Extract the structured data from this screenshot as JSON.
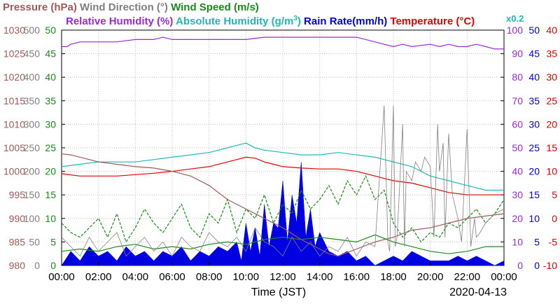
{
  "chart_data": {
    "type": "line",
    "date": "2020-04-13",
    "xlabel": "Time (JST)",
    "x_ticks": [
      "00:00",
      "02:00",
      "04:00",
      "06:00",
      "08:00",
      "10:00",
      "12:00",
      "14:00",
      "16:00",
      "18:00",
      "20:00",
      "22:00",
      "00:00"
    ],
    "x_hours": [
      0,
      24
    ],
    "legend_row1": [
      {
        "text": "Pressure (hPa)",
        "color": "#a05a5a"
      },
      {
        "text": "Wind Direction (°)",
        "color": "#808080"
      },
      {
        "text": "Wind Speed (m/s)",
        "color": "#1a8a1a"
      }
    ],
    "legend_row2": [
      {
        "text": "Relative Humidity (%)",
        "color": "#9a28e0"
      },
      {
        "text": "Absolute Humidity (g/m",
        "sup": "3",
        "tail": ")",
        "color": "#20b8b8"
      },
      {
        "text": "Rain Rate(mm/h)",
        "color": "#0000e0"
      },
      {
        "text": "Temperature (°C)",
        "color": "#e80000"
      }
    ],
    "abs_humidity_scale_note": "x0.2",
    "axes": {
      "pressure": {
        "labels": [
          "1030",
          "1025",
          "1020",
          "1015",
          "1010",
          "1005",
          "1000",
          "995",
          "990",
          "985",
          "980"
        ],
        "range": [
          980,
          1030
        ],
        "color": "#a05a5a"
      },
      "wind_direction": {
        "labels": [
          "500",
          "450",
          "400",
          "350",
          "300",
          "250",
          "200",
          "150",
          "100",
          "50",
          "0"
        ],
        "range": [
          0,
          500
        ],
        "color": "#808080"
      },
      "wind_speed": {
        "labels": [
          "50",
          "45",
          "40",
          "35",
          "30",
          "25",
          "20",
          "15",
          "10",
          "5",
          "0"
        ],
        "range": [
          0,
          50
        ],
        "color": "#1a8a1a"
      },
      "humidity": {
        "labels": [
          "100",
          "90",
          "80",
          "70",
          "60",
          "50",
          "40",
          "30",
          "20",
          "10",
          "0"
        ],
        "range": [
          0,
          100
        ],
        "color": "#9a28e0"
      },
      "rain_rate": {
        "labels": [
          "50",
          "45",
          "40",
          "35",
          "30",
          "25",
          "20",
          "15",
          "10",
          "5",
          "0"
        ],
        "range": [
          0,
          50
        ],
        "color": "#0000e0"
      },
      "temperature": {
        "labels": [
          "40",
          "35",
          "30",
          "25",
          "20",
          "15",
          "10",
          "5",
          "0",
          "-5",
          "-10"
        ],
        "range": [
          -10,
          40
        ],
        "color": "#e80000"
      }
    },
    "series": [
      {
        "name": "Relative Humidity",
        "axis": "humidity",
        "color": "#9a28e0",
        "x": [
          0,
          0.3,
          0.5,
          1,
          2,
          3,
          4,
          5,
          5.5,
          6,
          7,
          8,
          9,
          10,
          11,
          12,
          13,
          14,
          15,
          16,
          16.5,
          17,
          17.5,
          18,
          18.5,
          19,
          20,
          20.5,
          21,
          21.5,
          22,
          22.5,
          23,
          23.5,
          24
        ],
        "y": [
          93,
          93,
          94,
          95,
          95,
          95,
          96,
          96,
          97,
          96,
          96,
          96,
          96,
          96,
          97,
          97,
          97,
          97,
          97,
          97,
          96,
          95,
          94,
          93,
          94,
          93,
          94,
          93,
          94,
          93,
          93,
          94,
          93,
          92,
          92
        ]
      },
      {
        "name": "Absolute Humidity",
        "axis": "humidity",
        "color": "#20b8b8",
        "x": [
          0,
          1,
          2,
          3,
          4,
          5,
          6,
          7,
          8,
          8.5,
          9,
          9.5,
          10,
          10.5,
          11,
          12,
          13,
          14,
          15,
          16,
          17,
          17.5,
          18,
          19,
          20,
          20.5,
          21,
          22,
          23,
          24
        ],
        "y": [
          42,
          43,
          44,
          44,
          44,
          45,
          46,
          47,
          48,
          49,
          50,
          51,
          52,
          50,
          49,
          48,
          47,
          47,
          48,
          47,
          46,
          45,
          44,
          42,
          38,
          37,
          36,
          34,
          32,
          32
        ]
      },
      {
        "name": "Temperature",
        "axis": "temperature",
        "color": "#e80000",
        "x": [
          0,
          1,
          2,
          3,
          4,
          5,
          6,
          7,
          8,
          9,
          9.5,
          10,
          10.5,
          11,
          11.5,
          12,
          13,
          14,
          15,
          16,
          17,
          17.5,
          18,
          19,
          20,
          21,
          22,
          23,
          24
        ],
        "y": [
          9.5,
          9,
          9,
          9,
          9.3,
          9.6,
          10,
          10.5,
          11,
          12,
          12.5,
          13,
          12.8,
          12,
          11.5,
          11,
          10.7,
          10.5,
          10.5,
          10,
          9,
          8.5,
          8,
          7.5,
          6.5,
          5.5,
          5,
          5,
          5
        ]
      },
      {
        "name": "Pressure",
        "axis": "pressure",
        "color": "#a05a5a",
        "x": [
          0,
          0.5,
          1,
          2,
          3,
          4,
          5,
          6,
          7,
          8,
          9,
          10,
          11,
          12,
          13,
          14,
          14.5,
          15,
          16,
          17,
          17.5,
          18,
          19,
          20,
          21,
          22,
          23,
          24
        ],
        "y": [
          1003.7,
          1003.5,
          1003,
          1002,
          1001.5,
          1001,
          1000.7,
          1000,
          999,
          997,
          994,
          992,
          990,
          988,
          985.5,
          983.5,
          982.5,
          982,
          983.5,
          985,
          985.5,
          986,
          987.5,
          988,
          989,
          990,
          990.5,
          991
        ]
      },
      {
        "name": "Wind Speed (max)",
        "axis": "wind_speed",
        "color": "#1a8a1a",
        "dashed": true,
        "x": [
          0,
          0.5,
          1,
          1.5,
          2,
          2.5,
          3,
          3.5,
          4,
          4.5,
          5,
          5.5,
          6,
          6.5,
          7,
          7.5,
          8,
          8.5,
          9,
          9.5,
          10,
          10.5,
          11,
          11.5,
          12,
          12.5,
          13,
          13.5,
          14,
          14.5,
          15,
          15.5,
          16,
          16.5,
          17,
          17.5,
          18,
          18.5,
          19,
          19.5,
          20,
          20.5,
          21,
          21.5,
          22,
          22.5,
          23,
          23.5,
          24
        ],
        "y": [
          9,
          7,
          6,
          8,
          10,
          6,
          11,
          5,
          8,
          12,
          9,
          7,
          10,
          13,
          8,
          6,
          11,
          9,
          14,
          7,
          12,
          10,
          15,
          9,
          13,
          11,
          16,
          12,
          14,
          17,
          13,
          18,
          15,
          19,
          14,
          16,
          9,
          6,
          8,
          5,
          7,
          6,
          9,
          8,
          10,
          12,
          9,
          11,
          14
        ]
      },
      {
        "name": "Wind Speed (avg)",
        "axis": "wind_speed",
        "color": "#1a8a1a",
        "x": [
          0,
          1,
          2,
          3,
          4,
          5,
          6,
          7,
          8,
          9,
          10,
          11,
          12,
          13,
          14,
          15,
          16,
          17,
          18,
          19,
          20,
          21,
          22,
          23,
          24
        ],
        "y": [
          3,
          3.5,
          3,
          4,
          4.5,
          3.5,
          4,
          3.5,
          4.5,
          5,
          4.5,
          5.5,
          6,
          5.5,
          6,
          5.5,
          5,
          6.5,
          5,
          4,
          3,
          2.5,
          3,
          4,
          4
        ]
      },
      {
        "name": "Wind Direction",
        "axis": "wind_direction",
        "color": "#808080",
        "x": [
          0,
          0.5,
          1,
          1.5,
          2,
          2.5,
          3,
          3.5,
          4,
          4.5,
          5,
          5.5,
          6,
          6.5,
          7,
          7.5,
          8,
          8.5,
          9,
          9.5,
          10,
          10.5,
          11,
          11.5,
          12,
          12.5,
          13,
          13.5,
          14,
          14.5,
          15,
          15.5,
          16,
          16.5,
          17,
          17,
          17.5,
          17.7,
          17.8,
          18,
          18.1,
          18.2,
          18.5,
          18.6,
          18.7,
          19,
          19.2,
          19.5,
          19.7,
          20,
          20.2,
          20.4,
          20.5,
          20.7,
          20.8,
          21,
          21.2,
          21.5,
          21.7,
          22,
          22.2,
          22.4,
          22.5,
          22.7,
          23,
          23.5,
          24
        ],
        "y": [
          60,
          40,
          20,
          60,
          30,
          50,
          70,
          20,
          40,
          60,
          30,
          50,
          20,
          60,
          40,
          30,
          70,
          50,
          40,
          60,
          30,
          80,
          50,
          40,
          20,
          60,
          30,
          50,
          20,
          40,
          30,
          60,
          20,
          50,
          40,
          40,
          340,
          50,
          30,
          340,
          40,
          60,
          300,
          40,
          200,
          180,
          220,
          200,
          230,
          210,
          60,
          300,
          200,
          260,
          60,
          280,
          150,
          100,
          50,
          290,
          40,
          100,
          60,
          70,
          90,
          110,
          120
        ]
      }
    ],
    "rain_rate": {
      "axis": "rain_rate",
      "color": "#0000e0",
      "x": [
        0,
        0.5,
        1,
        1.5,
        2,
        2.5,
        3,
        3.5,
        4,
        4.5,
        5,
        5.5,
        6,
        6.5,
        7,
        7.5,
        8,
        8.5,
        9,
        9.5,
        9.75,
        10,
        10.25,
        10.5,
        10.75,
        11,
        11.25,
        11.5,
        11.75,
        12,
        12.25,
        12.5,
        12.75,
        13,
        13.25,
        13.5,
        13.75,
        14,
        14.5,
        15,
        15.5,
        16,
        16.5,
        17,
        17.5,
        18,
        18.5,
        19,
        19.5,
        20,
        20.5,
        21,
        21.5,
        22,
        22.5,
        23,
        23.5,
        24
      ],
      "y": [
        0,
        3,
        1,
        4,
        2,
        3,
        1,
        4,
        2,
        3,
        1,
        3,
        2,
        4,
        1,
        3,
        2,
        4,
        3,
        5,
        1,
        9,
        3,
        8,
        2,
        13,
        4,
        9,
        8,
        18,
        5,
        15,
        9,
        22,
        6,
        12,
        4,
        7,
        3,
        2,
        3,
        1,
        2,
        0,
        1,
        2,
        1,
        3,
        2,
        1,
        1,
        1,
        2,
        1,
        2,
        1,
        0,
        1
      ]
    }
  }
}
